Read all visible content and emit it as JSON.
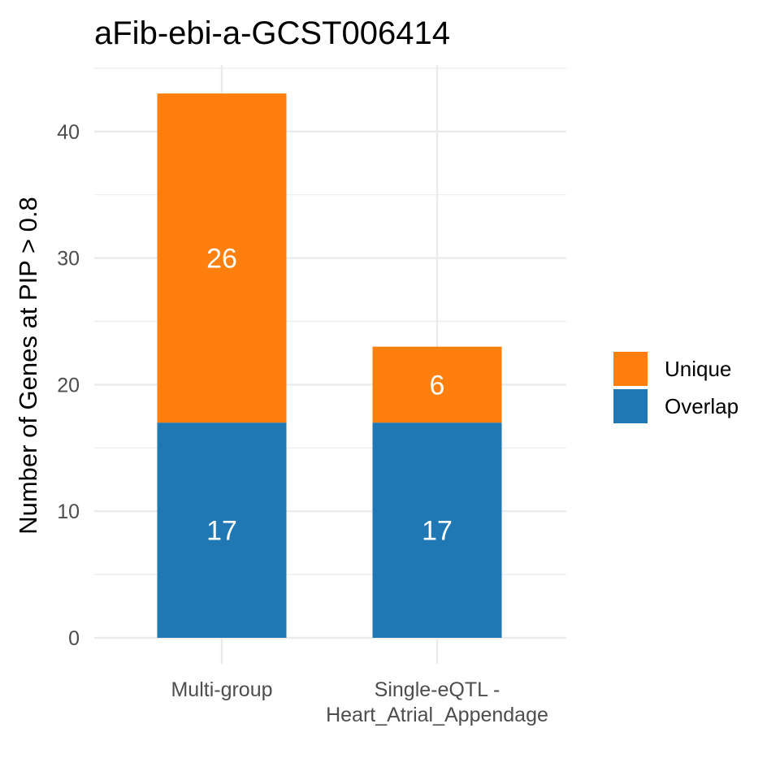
{
  "chart_data": {
    "type": "bar",
    "stacked": true,
    "title": "aFib-ebi-a-GCST006414",
    "xlabel": "",
    "ylabel": "Number of Genes at PIP > 0.8",
    "categories": [
      [
        "Multi-group"
      ],
      [
        "Single-eQTL -",
        "Heart_Atrial_Appendage"
      ]
    ],
    "series": [
      {
        "name": "Overlap",
        "color": "#1f77b4",
        "values": [
          17,
          17
        ],
        "labels": [
          "17",
          "17"
        ]
      },
      {
        "name": "Unique",
        "color": "#ff7f0e",
        "values": [
          26,
          6
        ],
        "labels": [
          "26",
          "6"
        ]
      }
    ],
    "legend_order": [
      "Unique",
      "Overlap"
    ],
    "legend_position": "right",
    "yticks": [
      0,
      10,
      20,
      30,
      40
    ],
    "ylim": [
      0,
      45.2
    ],
    "grid": true
  }
}
